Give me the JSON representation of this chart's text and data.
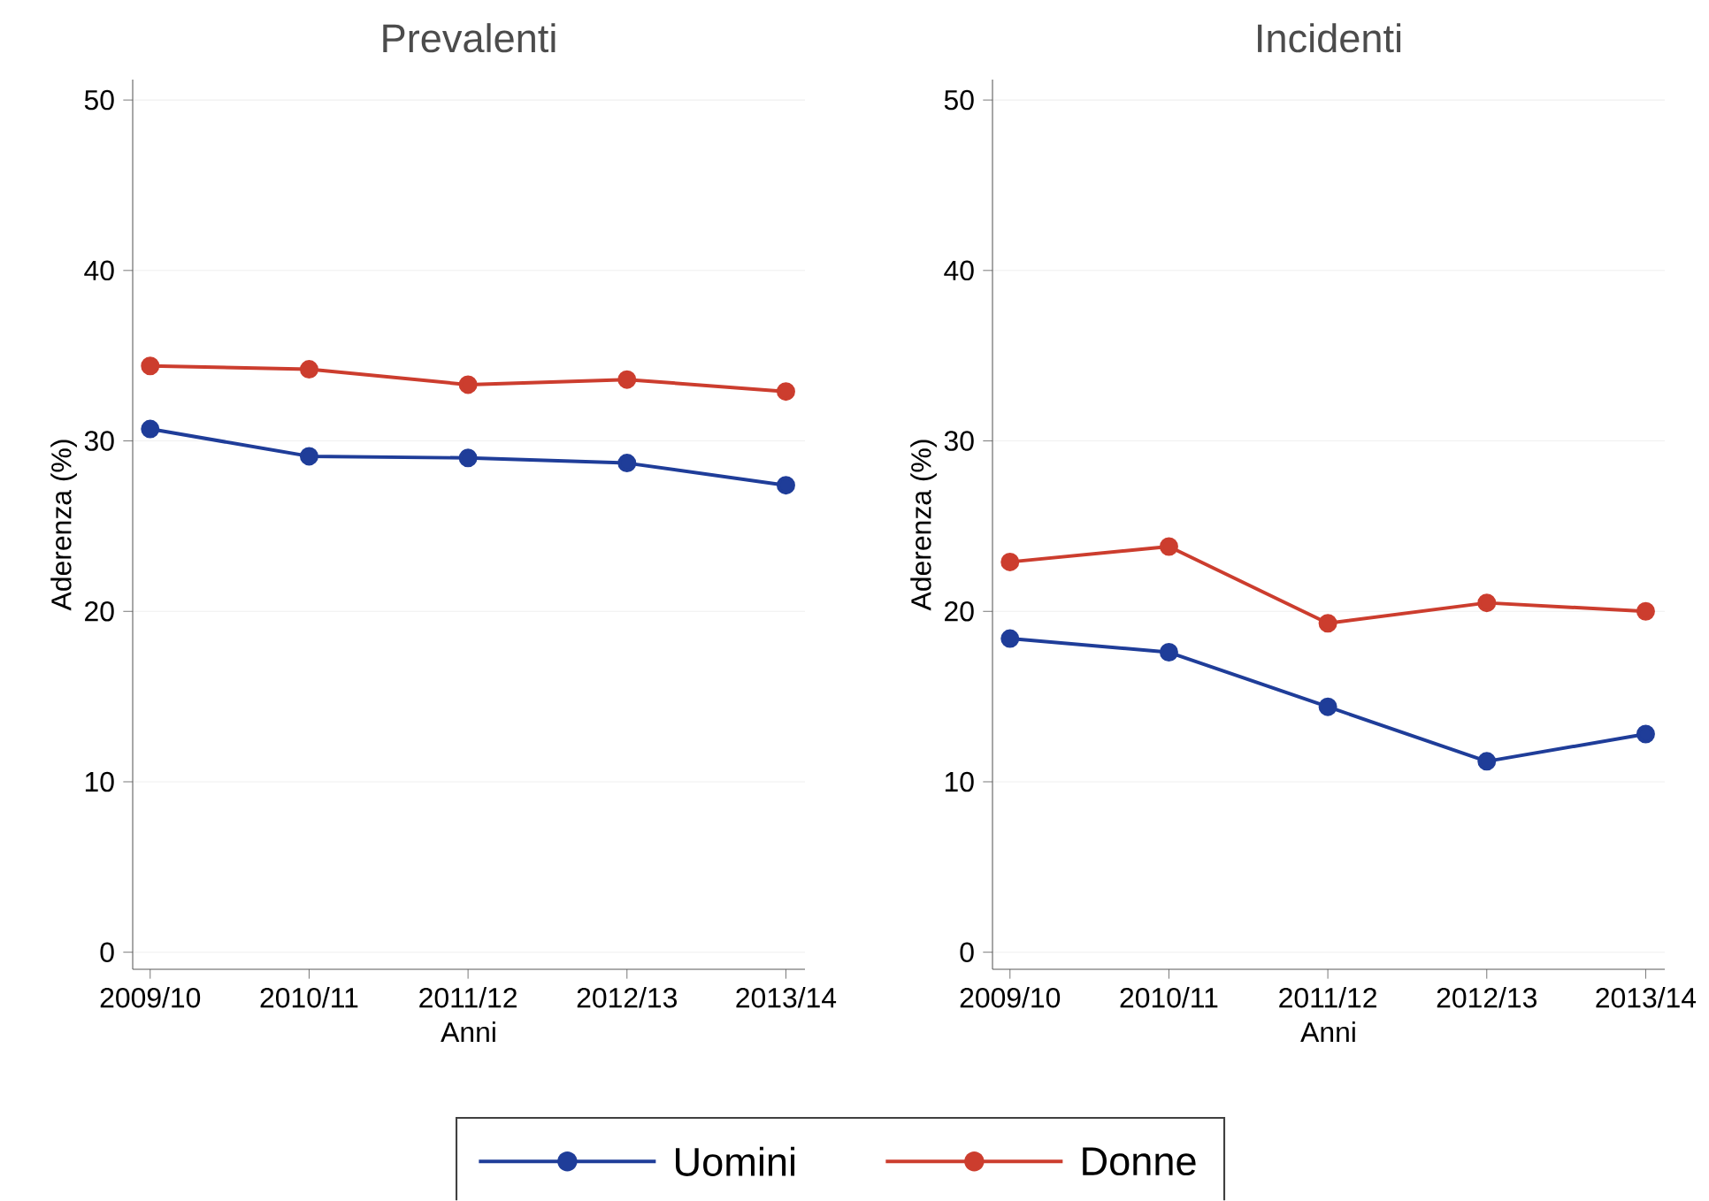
{
  "chart_data": [
    {
      "type": "line",
      "title": "Prevalenti",
      "xlabel": "Anni",
      "ylabel": "Aderenza (%)",
      "categories": [
        "2009/10",
        "2010/11",
        "2011/12",
        "2012/13",
        "2013/14"
      ],
      "series": [
        {
          "name": "Uomini",
          "color": "#1f3d99",
          "values": [
            30.7,
            29.1,
            29.0,
            28.7,
            27.4
          ]
        },
        {
          "name": "Donne",
          "color": "#cc3d2e",
          "values": [
            34.4,
            34.2,
            33.3,
            33.6,
            32.9
          ]
        }
      ],
      "ylim": [
        -1,
        51.2
      ],
      "yticks": [
        0,
        10,
        20,
        30,
        40,
        50
      ],
      "grid": "y",
      "legend": "bottom",
      "marker": "circle",
      "line_style": "solid"
    },
    {
      "type": "line",
      "title": "Incidenti",
      "xlabel": "Anni",
      "ylabel": "Aderenza (%)",
      "categories": [
        "2009/10",
        "2010/11",
        "2011/12",
        "2012/13",
        "2013/14"
      ],
      "series": [
        {
          "color": "#1f3d99",
          "values": [
            18.4,
            17.6,
            14.4,
            11.2,
            12.8
          ]
        },
        {
          "color": "#cc3d2e",
          "values": [
            22.9,
            23.8,
            19.3,
            20.5,
            20.0
          ]
        }
      ],
      "ylim": [
        -1,
        51.2
      ],
      "yticks": [
        0,
        10,
        20,
        30,
        40,
        50
      ],
      "grid": "y",
      "marker": "circle",
      "line_style": "solid"
    }
  ]
}
